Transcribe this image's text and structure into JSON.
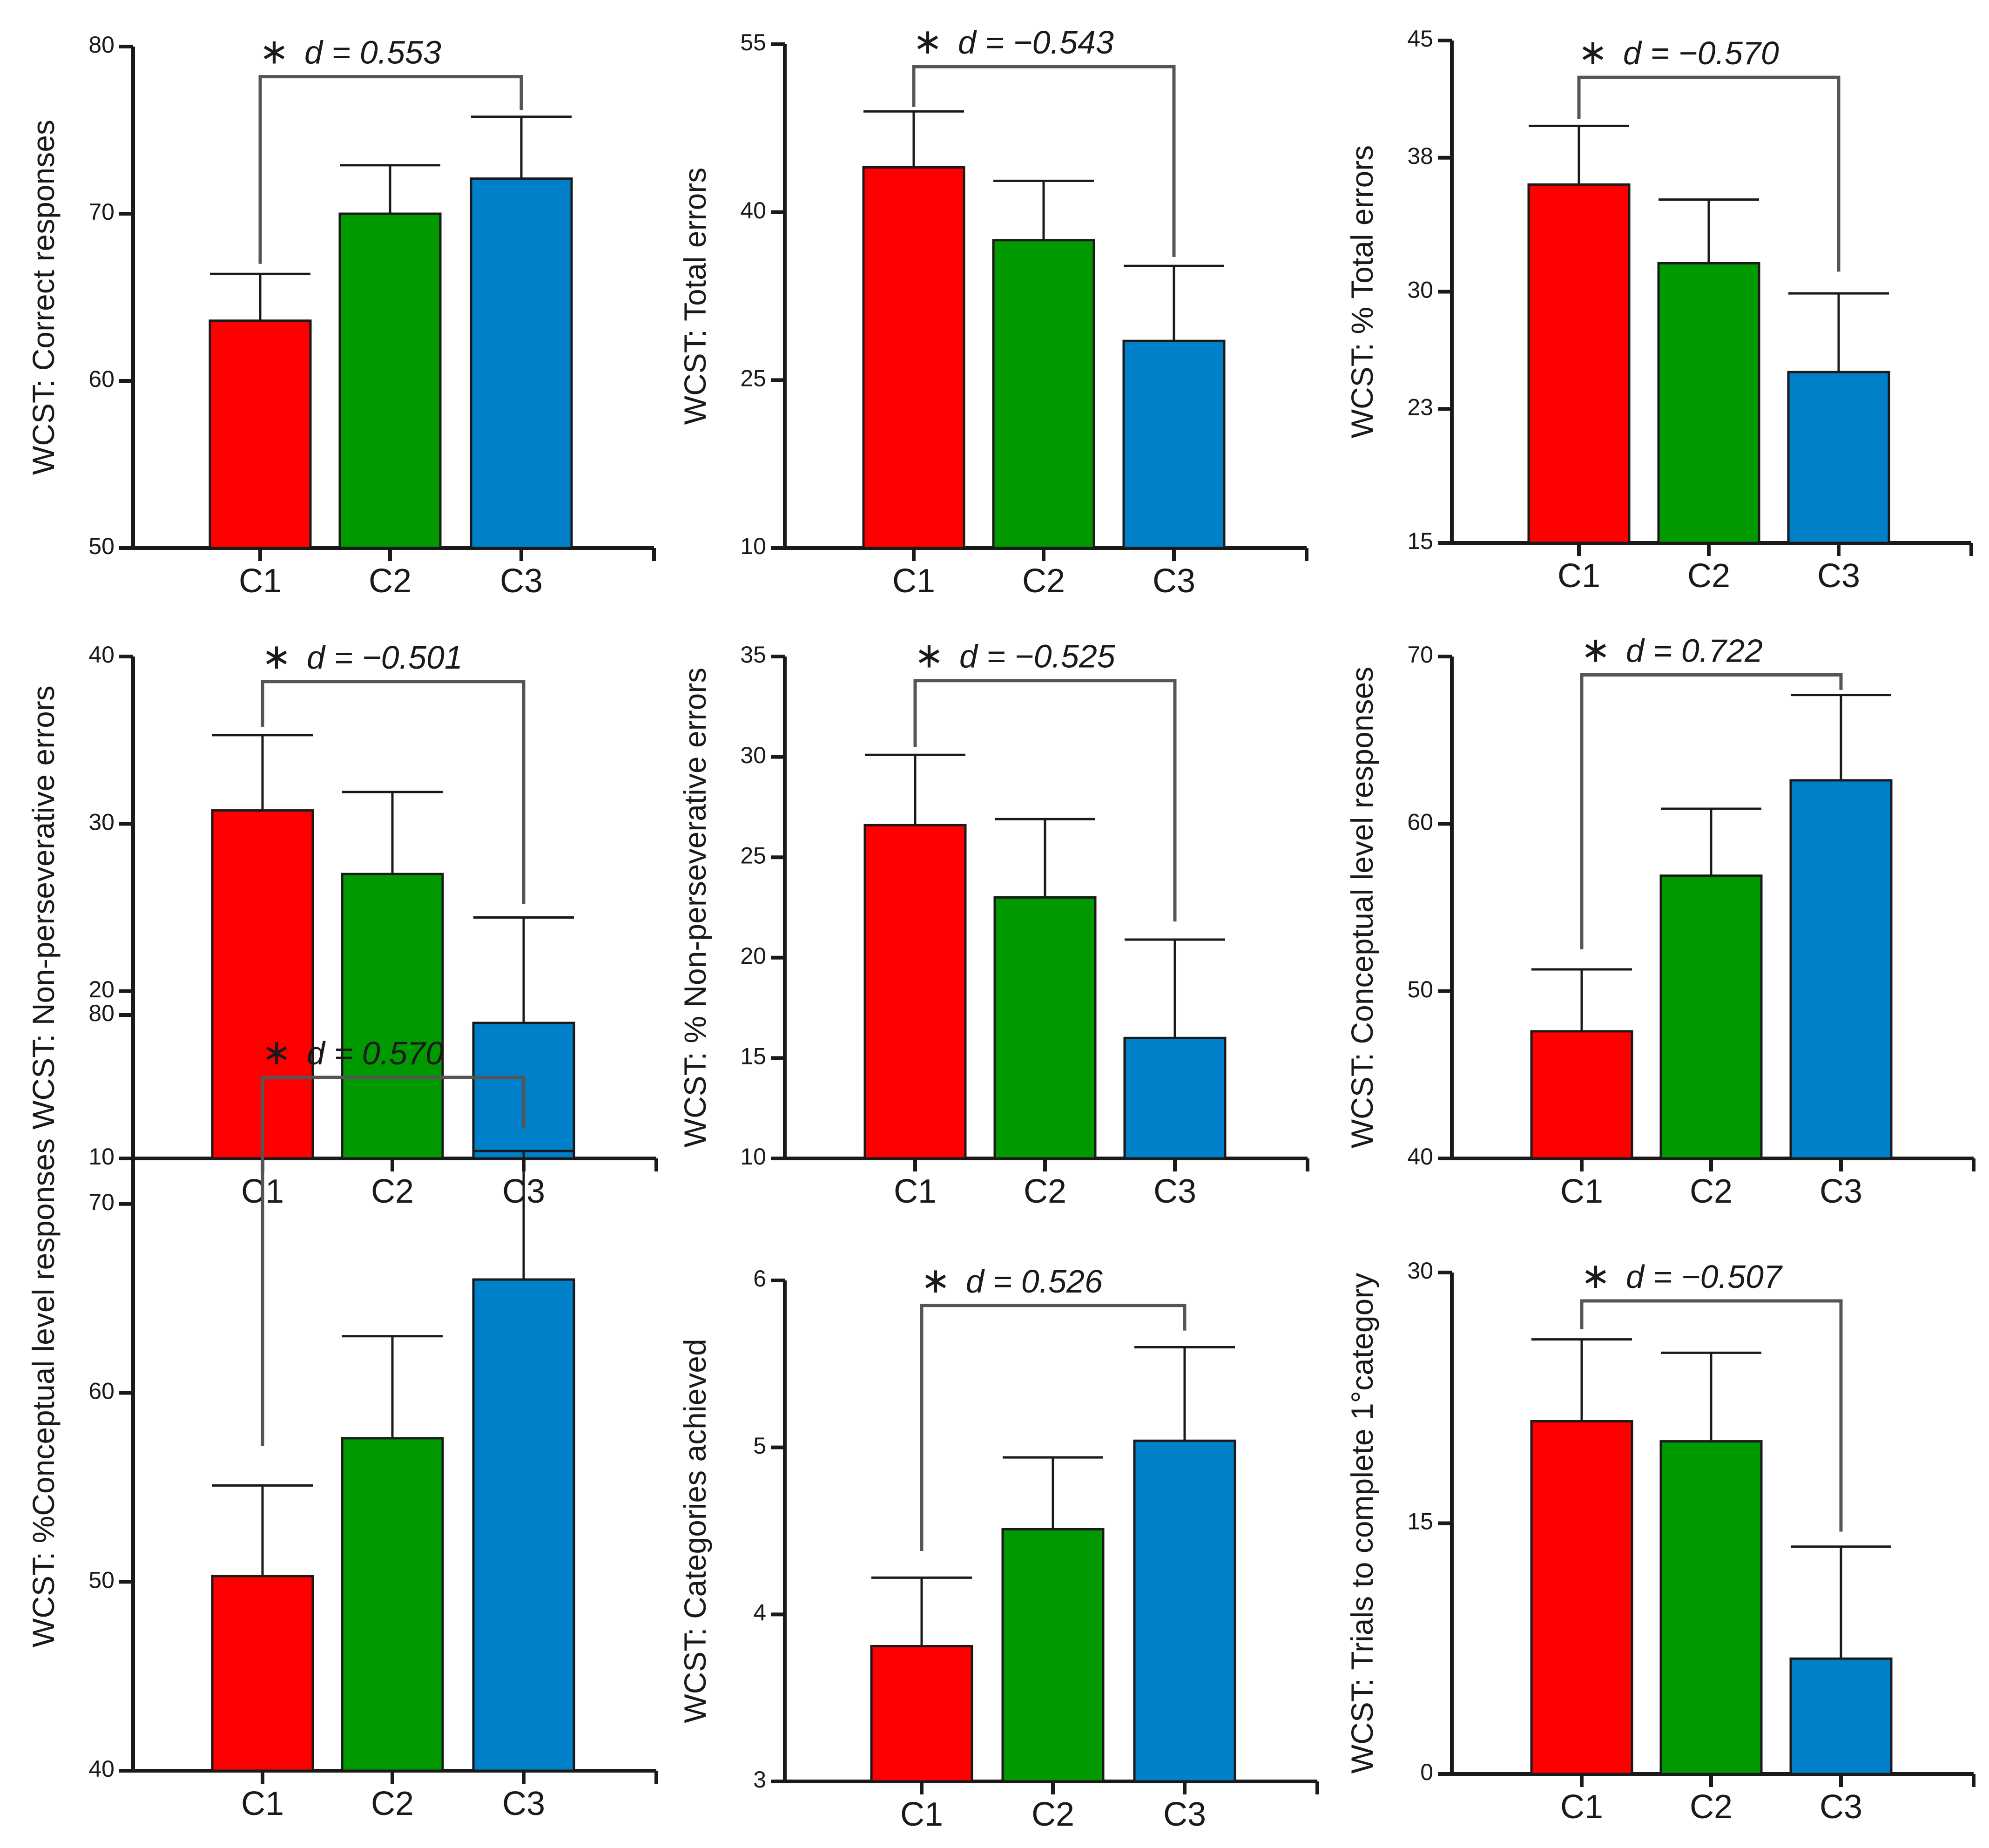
{
  "colors": {
    "C1": "#ff0000",
    "C2": "#009900",
    "C3": "#0080c8"
  },
  "chart_data": [
    {
      "type": "bar",
      "ylabel": "WCST: Correct responses",
      "ylim": [
        50,
        80
      ],
      "yticks": [
        "50",
        "60",
        "70",
        "80"
      ],
      "categories": [
        "C1",
        "C2",
        "C3"
      ],
      "values": [
        63.6,
        70.0,
        72.1
      ],
      "errors": [
        2.8,
        2.9,
        3.7
      ],
      "annotation": {
        "star": "∗",
        "text": "d  = 0.553",
        "pair": [
          "C1",
          "C3"
        ],
        "bracket_value": 78.2,
        "drop_values": [
          67.0,
          76.2
        ]
      }
    },
    {
      "type": "bar",
      "ylabel": "WCST: Total errors",
      "ylim": [
        10,
        55
      ],
      "yticks": [
        "10",
        "25",
        "40",
        "55"
      ],
      "categories": [
        "C1",
        "C2",
        "C3"
      ],
      "values": [
        44.0,
        37.5,
        28.5
      ],
      "errors": [
        5.0,
        5.3,
        6.7
      ],
      "annotation": {
        "star": "∗",
        "text": "d  = −0.543",
        "pair": [
          "C1",
          "C3"
        ],
        "bracket_value": 53.0,
        "drop_values": [
          49.4,
          36.0
        ]
      }
    },
    {
      "type": "bar",
      "ylabel": "WCST: % Total errors",
      "ylim": [
        15,
        45
      ],
      "yticks": [
        "15",
        "23",
        "30",
        "38",
        "45"
      ],
      "categories": [
        "C1",
        "C2",
        "C3"
      ],
      "values": [
        36.4,
        31.7,
        25.2
      ],
      "errors": [
        3.5,
        3.8,
        4.7
      ],
      "annotation": {
        "star": "∗",
        "text": "d  = −0.570",
        "pair": [
          "C1",
          "C3"
        ],
        "bracket_value": 42.8,
        "drop_values": [
          40.3,
          31.2
        ]
      }
    },
    {
      "type": "bar",
      "ylabel": "WCST: Non-perseverative errors",
      "ylim": [
        10,
        40
      ],
      "yticks": [
        "10",
        "20",
        "30",
        "40"
      ],
      "categories": [
        "C1",
        "C2",
        "C3"
      ],
      "values": [
        30.8,
        27.0,
        18.1
      ],
      "errors": [
        4.5,
        4.9,
        6.3
      ],
      "annotation": {
        "star": "∗",
        "text": "d  = −0.501",
        "pair": [
          "C1",
          "C3"
        ],
        "bracket_value": 38.5,
        "drop_values": [
          35.8,
          25.2
        ]
      }
    },
    {
      "type": "bar",
      "ylabel": "WCST: % Non-perseverative errors",
      "ylim": [
        10,
        35
      ],
      "yticks": [
        "10",
        "15",
        "20",
        "25",
        "30",
        "35"
      ],
      "categories": [
        "C1",
        "C2",
        "C3"
      ],
      "values": [
        26.6,
        23.0,
        16.0
      ],
      "errors": [
        3.5,
        3.9,
        4.9
      ],
      "annotation": {
        "star": "∗",
        "text": "d  = −0.525",
        "pair": [
          "C1",
          "C3"
        ],
        "bracket_value": 33.8,
        "drop_values": [
          30.5,
          21.8
        ]
      }
    },
    {
      "type": "bar",
      "ylabel": "WCST: Conceptual level responses",
      "ylim": [
        40,
        70
      ],
      "yticks": [
        "40",
        "50",
        "60",
        "70"
      ],
      "categories": [
        "C1",
        "C2",
        "C3"
      ],
      "values": [
        47.6,
        56.9,
        62.6
      ],
      "errors": [
        3.7,
        4.0,
        5.1
      ],
      "annotation": {
        "star": "∗",
        "text": "d  = 0.722",
        "pair": [
          "C1",
          "C3"
        ],
        "bracket_value": 68.9,
        "drop_values": [
          52.5,
          68.0
        ]
      }
    },
    {
      "type": "bar",
      "ylabel": "WCST: %Conceptual level responses",
      "ylim": [
        40,
        80
      ],
      "yticks": [
        "40",
        "50",
        "60",
        "70",
        "80"
      ],
      "categories": [
        "C1",
        "C2",
        "C3"
      ],
      "values": [
        50.3,
        57.6,
        66.0
      ],
      "errors": [
        4.8,
        5.4,
        6.8
      ],
      "annotation": {
        "star": "∗",
        "text": "d  = 0.570",
        "pair": [
          "C1",
          "C3"
        ],
        "bracket_value": 76.7,
        "drop_values": [
          57.2,
          74.0
        ]
      }
    },
    {
      "type": "bar",
      "ylabel": "WCST: Categories achieved",
      "ylim": [
        3,
        6
      ],
      "yticks": [
        "3",
        "4",
        "5",
        "6"
      ],
      "categories": [
        "C1",
        "C2",
        "C3"
      ],
      "values": [
        3.81,
        4.51,
        5.04
      ],
      "errors": [
        0.41,
        0.43,
        0.56
      ],
      "annotation": {
        "star": "∗",
        "text": "d  = 0.526",
        "pair": [
          "C1",
          "C3"
        ],
        "bracket_value": 5.85,
        "drop_values": [
          4.38,
          5.7
        ]
      }
    },
    {
      "type": "bar",
      "ylabel": "WCST: Trials to complete 1°category",
      "ylim": [
        0,
        30
      ],
      "yticks": [
        "0",
        "15",
        "30"
      ],
      "categories": [
        "C1",
        "C2",
        "C3"
      ],
      "values": [
        21.1,
        19.9,
        6.9
      ],
      "errors": [
        4.9,
        5.3,
        6.7
      ],
      "annotation": {
        "star": "∗",
        "text": "d  = −0.507",
        "pair": [
          "C1",
          "C3"
        ],
        "bracket_value": 28.3,
        "drop_values": [
          26.6,
          14.5
        ]
      }
    }
  ]
}
